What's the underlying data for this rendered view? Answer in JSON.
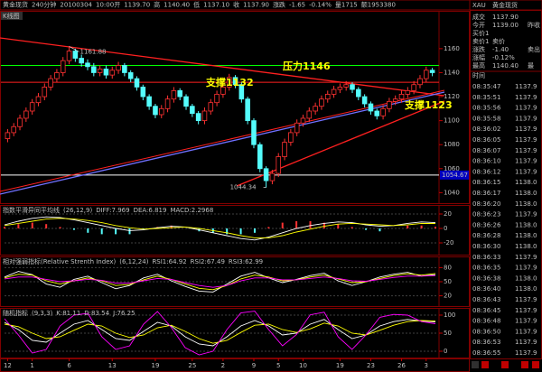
{
  "header": {
    "items": [
      {
        "text": "黄金现货",
        "color": "#ffff00"
      },
      {
        "text": "240分钟",
        "color": "#ffffff"
      },
      {
        "text": "20100304",
        "color": "#c0c0c0"
      },
      {
        "text": "10:00开",
        "color": "#c0c0c0"
      },
      {
        "text": "1139.70",
        "color": "#ff5050"
      },
      {
        "text": "高",
        "color": "#c0c0c0"
      },
      {
        "text": "1140.40",
        "color": "#ff5050"
      },
      {
        "text": "低",
        "color": "#c0c0c0"
      },
      {
        "text": "1137.10",
        "color": "#00ff00"
      },
      {
        "text": "收",
        "color": "#c0c0c0"
      },
      {
        "text": "1137.90",
        "color": "#00ff00"
      },
      {
        "text": "涨跌",
        "color": "#c0c0c0"
      },
      {
        "text": "-1.65",
        "color": "#00ff00"
      },
      {
        "text": "-0.14%",
        "color": "#00ff00"
      },
      {
        "text": "量1715",
        "color": "#c0c0c0"
      },
      {
        "text": "额1953380",
        "color": "#c0c0c0"
      }
    ]
  },
  "quote": {
    "symbol": "XAU",
    "name": "黄金现货",
    "rows": [
      [
        "成交",
        "1137.90"
      ],
      [
        "今开",
        "1139.00",
        "昨收"
      ],
      [
        "买价1"
      ],
      [
        "卖价1",
        "卖价"
      ],
      [
        "涨跌",
        "-1.40",
        "卖出"
      ],
      [
        "涨幅",
        "-0.12%"
      ],
      [
        "最高",
        "1140.40",
        "最"
      ]
    ],
    "ticks_header": "时间",
    "ticks": [
      [
        "08:35:47",
        "1137.9"
      ],
      [
        "08:35:51",
        "1137.9"
      ],
      [
        "08:35:56",
        "1137.9"
      ],
      [
        "08:35:58",
        "1137.9"
      ],
      [
        "08:36:02",
        "1137.9"
      ],
      [
        "08:36:05",
        "1137.9"
      ],
      [
        "08:36:07",
        "1137.9"
      ],
      [
        "08:36:10",
        "1137.9"
      ],
      [
        "08:36:12",
        "1137.9"
      ],
      [
        "08:36:15",
        "1138.0"
      ],
      [
        "08:36:17",
        "1138.0"
      ],
      [
        "08:36:20",
        "1138.0"
      ],
      [
        "08:36:23",
        "1137.9"
      ],
      [
        "08:36:26",
        "1138.0"
      ],
      [
        "08:36:28",
        "1138.0"
      ],
      [
        "08:36:30",
        "1138.0"
      ],
      [
        "08:36:33",
        "1137.9"
      ],
      [
        "08:36:35",
        "1137.9"
      ],
      [
        "08:36:38",
        "1138.0"
      ],
      [
        "08:36:40",
        "1138.0"
      ],
      [
        "08:36:43",
        "1137.9"
      ],
      [
        "08:36:45",
        "1137.9"
      ],
      [
        "08:36:48",
        "1137.9"
      ],
      [
        "08:36:50",
        "1137.9"
      ],
      [
        "08:36:53",
        "1137.9"
      ],
      [
        "08:36:55",
        "1137.9"
      ]
    ]
  },
  "chart_data": [
    {
      "type": "candlestick",
      "title": "K线图",
      "up_color": "#ff3232",
      "down_color": "#54fcfc",
      "ylim": [
        1032,
        1190
      ],
      "yticks": [
        1040,
        1060,
        1080,
        1100,
        1120,
        1140,
        1160
      ],
      "xticks": [
        {
          "value": 0,
          "label": "12"
        },
        {
          "value": 4,
          "label": "1"
        },
        {
          "value": 10,
          "label": "6"
        },
        {
          "value": 17,
          "label": "13"
        },
        {
          "value": 24,
          "label": "19"
        },
        {
          "value": 30,
          "label": "25"
        },
        {
          "value": 35,
          "label": "2"
        },
        {
          "value": 40,
          "label": "9"
        },
        {
          "value": 44,
          "label": "5"
        },
        {
          "value": 48,
          "label": "10"
        },
        {
          "value": 54,
          "label": "19"
        },
        {
          "value": 59,
          "label": "23"
        },
        {
          "value": 64,
          "label": "26"
        },
        {
          "value": 68,
          "label": "3"
        }
      ],
      "candles": [
        [
          1085,
          1093,
          1082,
          1090
        ],
        [
          1090,
          1098,
          1087,
          1095
        ],
        [
          1095,
          1105,
          1092,
          1102
        ],
        [
          1102,
          1111,
          1099,
          1108
        ],
        [
          1108,
          1118,
          1105,
          1115
        ],
        [
          1115,
          1123,
          1112,
          1120
        ],
        [
          1120,
          1131,
          1117,
          1128
        ],
        [
          1128,
          1138,
          1125,
          1135
        ],
        [
          1135,
          1143,
          1132,
          1140
        ],
        [
          1140,
          1153,
          1137,
          1150
        ],
        [
          1150,
          1161.88,
          1147,
          1158
        ],
        [
          1158,
          1160,
          1149,
          1152
        ],
        [
          1152,
          1155,
          1145,
          1148
        ],
        [
          1148,
          1151,
          1142,
          1145
        ],
        [
          1145,
          1148,
          1137,
          1140
        ],
        [
          1140,
          1146,
          1137,
          1143
        ],
        [
          1143,
          1146,
          1135,
          1138
        ],
        [
          1138,
          1145,
          1135,
          1142
        ],
        [
          1142,
          1149,
          1139,
          1146
        ],
        [
          1146,
          1148,
          1137,
          1140
        ],
        [
          1140,
          1142,
          1132,
          1135
        ],
        [
          1135,
          1137,
          1125,
          1128
        ],
        [
          1128,
          1130,
          1117,
          1120
        ],
        [
          1120,
          1122,
          1109,
          1112
        ],
        [
          1112,
          1114,
          1102,
          1105
        ],
        [
          1105,
          1113,
          1102,
          1110
        ],
        [
          1110,
          1121,
          1107,
          1118
        ],
        [
          1118,
          1128,
          1115,
          1125
        ],
        [
          1125,
          1127,
          1117,
          1120
        ],
        [
          1120,
          1122,
          1109,
          1112
        ],
        [
          1112,
          1114,
          1103,
          1106
        ],
        [
          1106,
          1108,
          1097,
          1100
        ],
        [
          1100,
          1111,
          1097,
          1108
        ],
        [
          1108,
          1118,
          1105,
          1115
        ],
        [
          1115,
          1125,
          1112,
          1122
        ],
        [
          1122,
          1131,
          1119,
          1128
        ],
        [
          1128,
          1139,
          1125,
          1136
        ],
        [
          1136,
          1138,
          1127,
          1130
        ],
        [
          1130,
          1132,
          1115,
          1118
        ],
        [
          1118,
          1120,
          1097,
          1100
        ],
        [
          1100,
          1102,
          1077,
          1080
        ],
        [
          1080,
          1082,
          1057,
          1060
        ],
        [
          1060,
          1062,
          1044.34,
          1050
        ],
        [
          1050,
          1059,
          1047,
          1056
        ],
        [
          1056,
          1073,
          1053,
          1070
        ],
        [
          1070,
          1085,
          1067,
          1082
        ],
        [
          1082,
          1093,
          1079,
          1090
        ],
        [
          1090,
          1101,
          1087,
          1098
        ],
        [
          1098,
          1105,
          1095,
          1102
        ],
        [
          1102,
          1111,
          1099,
          1108
        ],
        [
          1108,
          1115,
          1105,
          1112
        ],
        [
          1112,
          1121,
          1109,
          1118
        ],
        [
          1118,
          1125,
          1115,
          1122
        ],
        [
          1122,
          1129,
          1119,
          1126
        ],
        [
          1126,
          1131,
          1123,
          1128
        ],
        [
          1128,
          1133,
          1125,
          1130
        ],
        [
          1130,
          1132,
          1123,
          1126
        ],
        [
          1126,
          1128,
          1117,
          1120
        ],
        [
          1120,
          1122,
          1111,
          1114
        ],
        [
          1114,
          1116,
          1105,
          1108
        ],
        [
          1108,
          1110,
          1101,
          1104
        ],
        [
          1104,
          1113,
          1101,
          1110
        ],
        [
          1110,
          1119,
          1107,
          1116
        ],
        [
          1116,
          1121,
          1113,
          1118
        ],
        [
          1118,
          1125,
          1115,
          1122
        ],
        [
          1122,
          1128,
          1119,
          1125
        ],
        [
          1125,
          1133,
          1122,
          1130
        ],
        [
          1130,
          1138,
          1127,
          1135
        ],
        [
          1135,
          1145,
          1132,
          1142
        ],
        [
          1142,
          1144,
          1137,
          1140
        ]
      ],
      "levels": [
        {
          "value": 1146,
          "color": "#00ff00"
        },
        {
          "value": 1132,
          "color": "#ff2020"
        },
        {
          "value": 1054.67,
          "color": "#ffffff",
          "label": "1054.67"
        }
      ],
      "value_labels": [
        {
          "candle": 10,
          "label": "1161.88"
        },
        {
          "candle": 42,
          "label": "1044.34"
        }
      ],
      "annotations": [
        "压力1146",
        "支撑1132",
        "支撑1123"
      ]
    },
    {
      "type": "macd",
      "title": "指数平滑异同平均线",
      "legend": [
        {
          "text": "(26,12,9)",
          "color": "#c0c0c0"
        },
        {
          "text": "DIFF:7.969",
          "color": "#ffffff"
        },
        {
          "text": "DEA:6.819",
          "color": "#ffff00"
        },
        {
          "text": "MACD:2.2968",
          "color": "#ff00ff"
        }
      ],
      "ylim": [
        -35,
        30
      ],
      "yticks": [
        -20,
        0,
        20
      ],
      "series": [
        {
          "color": "#ffffff",
          "values": [
            5,
            10,
            14,
            16,
            15,
            12,
            8,
            4,
            0,
            -3,
            -2,
            1,
            3,
            2,
            -2,
            -6,
            -10,
            -14,
            -16,
            -12,
            -6,
            0,
            4,
            7,
            9,
            8,
            5,
            3,
            4,
            7,
            9,
            7.969
          ]
        },
        {
          "color": "#ffff00",
          "values": [
            4,
            7,
            10,
            13,
            14,
            13,
            11,
            8,
            4,
            1,
            -1,
            0,
            1,
            2,
            0,
            -3,
            -6,
            -10,
            -13,
            -13,
            -10,
            -5,
            -1,
            3,
            6,
            7,
            6,
            5,
            4,
            5,
            7,
            6.819
          ]
        }
      ],
      "bars": [
        2,
        6,
        8,
        6,
        2,
        -2,
        -6,
        -8,
        -8,
        -8,
        -2,
        2,
        4,
        0,
        -4,
        -6,
        -8,
        -8,
        -6,
        2,
        8,
        10,
        10,
        8,
        6,
        2,
        -2,
        -4,
        0,
        4,
        4,
        2.2968
      ],
      "up_color": "#ff3232",
      "down_color": "#54fcfc"
    },
    {
      "type": "line",
      "title": "相对强弱指标(Relative Strenth Index)",
      "legend": [
        {
          "text": "(6,12,24)",
          "color": "#c0c0c0"
        },
        {
          "text": "RSI1:64.92",
          "color": "#ffffff"
        },
        {
          "text": "RSI2:67.49",
          "color": "#ffff00"
        },
        {
          "text": "RSI3:62.99",
          "color": "#ff00ff"
        }
      ],
      "ylim": [
        0,
        100
      ],
      "yticks": [
        20,
        50,
        80
      ],
      "series": [
        {
          "color": "#ffffff",
          "values": [
            60,
            72,
            65,
            45,
            38,
            55,
            62,
            48,
            35,
            42,
            58,
            66,
            52,
            40,
            30,
            28,
            45,
            62,
            70,
            58,
            48,
            55,
            63,
            68,
            52,
            42,
            50,
            60,
            66,
            70,
            62,
            64.92
          ]
        },
        {
          "color": "#ffff00",
          "values": [
            58,
            66,
            64,
            52,
            45,
            52,
            58,
            52,
            42,
            44,
            54,
            62,
            55,
            45,
            36,
            33,
            42,
            56,
            64,
            60,
            52,
            54,
            60,
            64,
            56,
            48,
            50,
            57,
            63,
            67,
            64,
            67.49
          ]
        },
        {
          "color": "#ff00ff",
          "values": [
            56,
            60,
            60,
            55,
            50,
            52,
            55,
            53,
            47,
            47,
            52,
            57,
            55,
            48,
            42,
            38,
            42,
            52,
            58,
            58,
            54,
            54,
            57,
            60,
            57,
            52,
            51,
            55,
            59,
            62,
            62,
            62.99
          ]
        }
      ]
    },
    {
      "type": "line",
      "title": "随机指标",
      "legend": [
        {
          "text": "(9,3,3)",
          "color": "#c0c0c0"
        },
        {
          "text": "K:81.11",
          "color": "#ffffff"
        },
        {
          "text": "D:83.54",
          "color": "#ffff00"
        },
        {
          "text": "J:76.25",
          "color": "#ff00ff"
        }
      ],
      "ylim": [
        -15,
        115
      ],
      "yticks": [
        0,
        50,
        100
      ],
      "series": [
        {
          "color": "#ffffff",
          "values": [
            80,
            60,
            30,
            25,
            50,
            75,
            85,
            60,
            35,
            30,
            55,
            80,
            70,
            40,
            20,
            15,
            40,
            70,
            85,
            70,
            45,
            50,
            75,
            88,
            60,
            35,
            45,
            70,
            82,
            88,
            84,
            81.11
          ]
        },
        {
          "color": "#ffff00",
          "values": [
            75,
            68,
            50,
            35,
            40,
            58,
            75,
            70,
            50,
            38,
            45,
            65,
            72,
            55,
            35,
            22,
            30,
            52,
            72,
            75,
            60,
            52,
            62,
            78,
            70,
            50,
            45,
            58,
            72,
            82,
            85,
            83.54
          ]
        },
        {
          "color": "#ff00ff",
          "values": [
            90,
            45,
            -5,
            5,
            70,
            100,
            105,
            40,
            5,
            15,
            75,
            110,
            66,
            10,
            -10,
            0,
            60,
            106,
            111,
            60,
            15,
            46,
            101,
            108,
            40,
            5,
            45,
            94,
            102,
            100,
            82,
            76.25
          ]
        }
      ]
    }
  ]
}
